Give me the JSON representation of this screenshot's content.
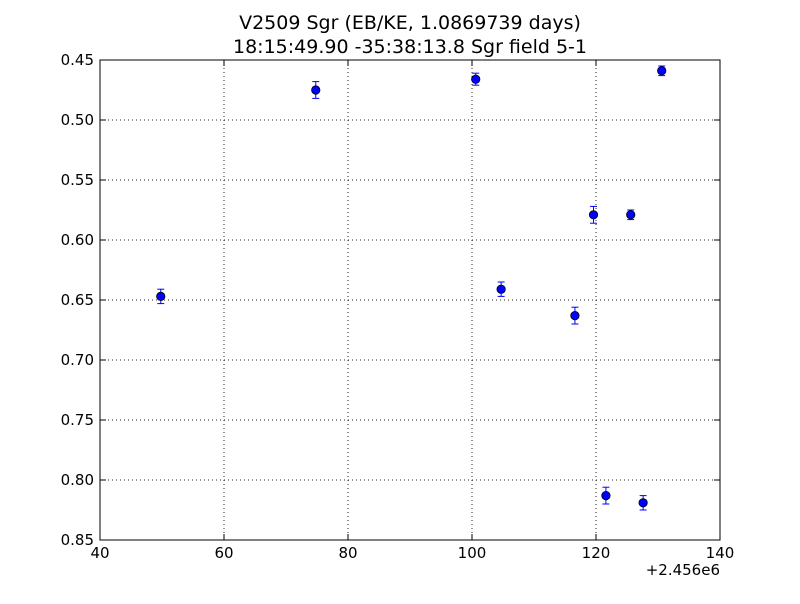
{
  "chart_data": {
    "type": "scatter",
    "title": "V2509 Sgr (EB/KE, 1.0869739 days)",
    "subtitle": "18:15:49.90 -35:38:13.8 Sgr field 5-1",
    "xlabel": "",
    "ylabel": "",
    "x_offset_label": "+2.456e6",
    "xlim": [
      40,
      140
    ],
    "ylim": [
      0.85,
      0.45
    ],
    "y_inverted": true,
    "grid": true,
    "x_ticks": [
      "40",
      "60",
      "80",
      "100",
      "120",
      "140"
    ],
    "y_ticks": [
      "0.45",
      "0.50",
      "0.55",
      "0.60",
      "0.65",
      "0.70",
      "0.75",
      "0.80",
      "0.85"
    ],
    "marker_color": "#0000ff",
    "errorbar_color": "#0000ff",
    "points": [
      {
        "x": 49.8,
        "y": 0.647,
        "err": 0.006
      },
      {
        "x": 74.8,
        "y": 0.475,
        "err": 0.007
      },
      {
        "x": 100.6,
        "y": 0.466,
        "err": 0.005
      },
      {
        "x": 104.7,
        "y": 0.641,
        "err": 0.006
      },
      {
        "x": 116.6,
        "y": 0.663,
        "err": 0.007
      },
      {
        "x": 119.6,
        "y": 0.579,
        "err": 0.007
      },
      {
        "x": 121.6,
        "y": 0.813,
        "err": 0.007
      },
      {
        "x": 125.6,
        "y": 0.579,
        "err": 0.004
      },
      {
        "x": 127.6,
        "y": 0.819,
        "err": 0.006
      },
      {
        "x": 130.6,
        "y": 0.459,
        "err": 0.004
      }
    ]
  }
}
